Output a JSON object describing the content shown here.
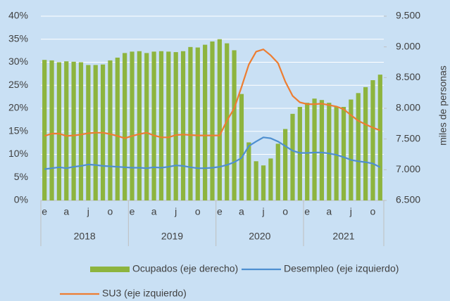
{
  "chart_data": {
    "type": "bar-line",
    "categories": [
      "e",
      null,
      null,
      "a",
      null,
      null,
      "j",
      null,
      null,
      "o",
      null,
      null,
      "e",
      null,
      null,
      "a",
      null,
      null,
      "j",
      null,
      null,
      "o",
      null,
      null,
      "e",
      null,
      null,
      "a",
      null,
      null,
      "j",
      null,
      null,
      "o",
      null,
      null,
      "e",
      null,
      null,
      "a",
      null,
      null,
      "j",
      null,
      null,
      "o",
      null
    ],
    "year_labels": [
      "2018",
      "2019",
      "2020",
      "2021"
    ],
    "ylim": [
      0,
      40
    ],
    "yticks": [
      {
        "value": 0,
        "label": "0%"
      },
      {
        "value": 5,
        "label": "5%"
      },
      {
        "value": 10,
        "label": "10%"
      },
      {
        "value": 15,
        "label": "15%"
      },
      {
        "value": 20,
        "label": "20%"
      },
      {
        "value": 25,
        "label": "25%"
      },
      {
        "value": 30,
        "label": "30%"
      },
      {
        "value": 35,
        "label": "35%"
      },
      {
        "value": 40,
        "label": "40%"
      }
    ],
    "y2lim": [
      6500,
      9500
    ],
    "y2ticks": [
      {
        "value": 6500,
        "label": "6.500"
      },
      {
        "value": 7000,
        "label": "7.000"
      },
      {
        "value": 7500,
        "label": "7.500"
      },
      {
        "value": 8000,
        "label": "8.000"
      },
      {
        "value": 8500,
        "label": "8.500"
      },
      {
        "value": 9000,
        "label": "9.000"
      },
      {
        "value": 9500,
        "label": "9.500"
      }
    ],
    "y2label": "miles de personas",
    "grid": true,
    "series": [
      {
        "name": "Ocupados (eje derecho)",
        "type": "bar",
        "axis": "y2",
        "color": "#8db43e",
        "values": [
          8788,
          8780,
          8750,
          8765,
          8758,
          8750,
          8705,
          8705,
          8713,
          8780,
          8825,
          8900,
          8923,
          8930,
          8900,
          8923,
          8930,
          8923,
          8915,
          8930,
          8998,
          8990,
          9035,
          9088,
          9125,
          9058,
          8945,
          8233,
          7445,
          7138,
          7070,
          7183,
          7423,
          7663,
          7910,
          8023,
          8090,
          8158,
          8135,
          8090,
          8023,
          8023,
          8143,
          8248,
          8345,
          8458,
          8548
        ]
      },
      {
        "name": "Desempleo (eje izquierdo)",
        "type": "line",
        "color": "#4e8fd0",
        "values": [
          6.8,
          7.0,
          7.2,
          7.0,
          7.3,
          7.5,
          7.8,
          7.7,
          7.5,
          7.4,
          7.3,
          7.2,
          7.1,
          7.1,
          7.0,
          7.2,
          7.1,
          7.3,
          7.6,
          7.5,
          7.2,
          7.0,
          7.0,
          7.1,
          7.3,
          7.7,
          8.3,
          9.2,
          11.8,
          12.8,
          13.7,
          13.5,
          12.8,
          11.8,
          10.8,
          10.3,
          10.3,
          10.4,
          10.4,
          10.2,
          9.9,
          9.4,
          8.8,
          8.5,
          8.3,
          8.0,
          7.2
        ]
      },
      {
        "name": "SU3 (eje izquierdo)",
        "type": "line",
        "color": "#ed7d31",
        "values": [
          14.0,
          14.5,
          14.5,
          14.0,
          14.1,
          14.3,
          14.6,
          14.7,
          14.7,
          14.4,
          14.0,
          13.5,
          14.0,
          14.4,
          14.7,
          14.1,
          13.7,
          13.7,
          14.2,
          14.3,
          14.2,
          14.1,
          14.1,
          14.1,
          14.1,
          17.3,
          20.0,
          24.6,
          29.5,
          32.3,
          32.8,
          31.5,
          29.8,
          25.8,
          22.7,
          21.3,
          20.9,
          20.9,
          21.0,
          20.7,
          20.4,
          19.8,
          18.5,
          17.3,
          16.5,
          15.8,
          15.2
        ]
      }
    ]
  }
}
